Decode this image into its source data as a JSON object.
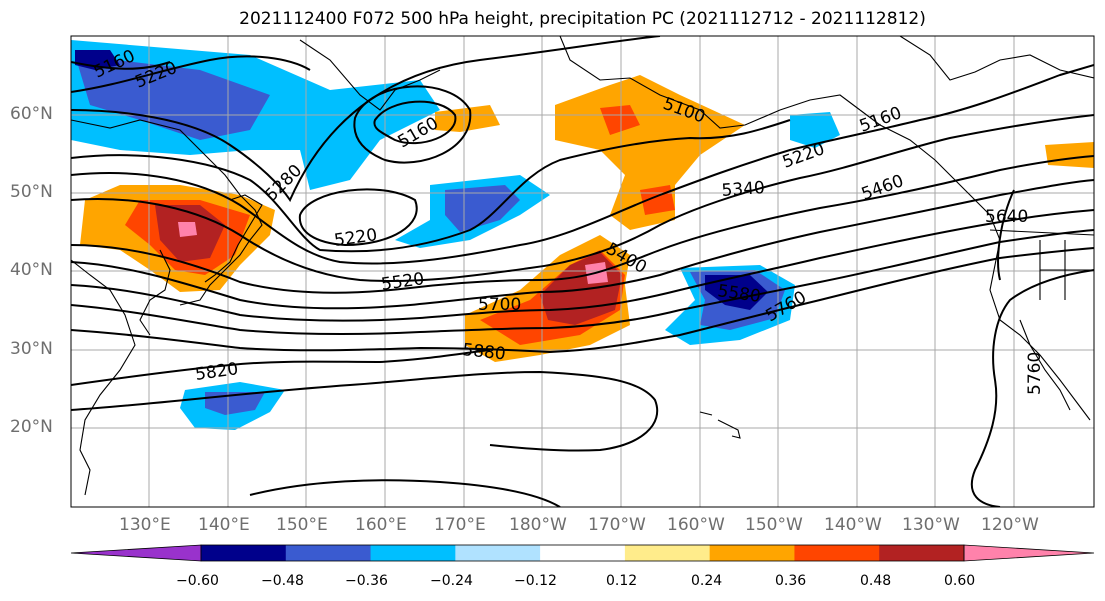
{
  "title": "2021112400 F072 500 hPa height, precipitation PC (2021112712 - 2021112812)",
  "lat_labels": [
    "60°N",
    "50°N",
    "40°N",
    "30°N",
    "20°N"
  ],
  "lon_labels": [
    "130°E",
    "140°E",
    "150°E",
    "160°E",
    "170°E",
    "180°W",
    "170°W",
    "160°W",
    "150°W",
    "140°W",
    "130°W",
    "120°W"
  ],
  "contour_labels": [
    "5160",
    "5220",
    "5160",
    "5280",
    "5220",
    "5520",
    "5700",
    "5880",
    "5820",
    "5400",
    "5580",
    "5760",
    "5100",
    "5220",
    "5160",
    "5340",
    "5460",
    "5640",
    "5760"
  ],
  "colorbar": {
    "tick_labels": [
      "−0.60",
      "−0.48",
      "−0.36",
      "−0.24",
      "−0.12",
      "0.12",
      "0.24",
      "0.36",
      "0.48",
      "0.60"
    ],
    "colors": [
      "#9932cc",
      "#00008b",
      "#3a5bd0",
      "#00bfff",
      "#b0e2ff",
      "#ffffff",
      "#ffec8b",
      "#ffa500",
      "#ff4500",
      "#b22222",
      "#ff82ab"
    ]
  },
  "fill_colors": {
    "neg1": "#b0e2ff",
    "neg2": "#00bfff",
    "neg3": "#3a5bd0",
    "neg4": "#00008b",
    "neg5": "#9932cc",
    "pos1": "#ffec8b",
    "pos2": "#ffa500",
    "pos3": "#ff4500",
    "pos4": "#b22222",
    "pos5": "#ff82ab"
  }
}
